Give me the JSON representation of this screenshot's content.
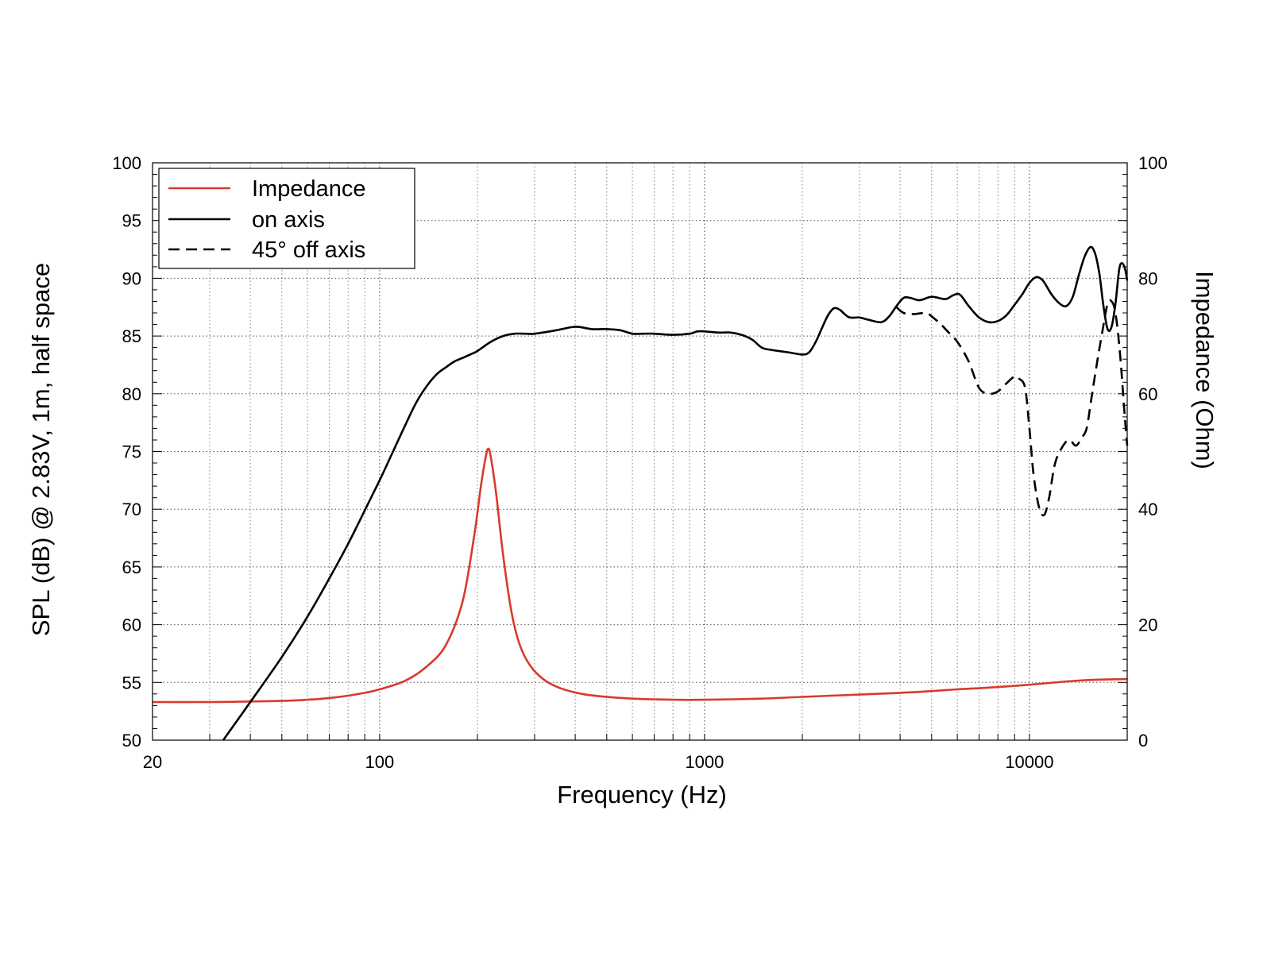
{
  "chart_data": {
    "type": "line",
    "xlabel": "Frequency (Hz)",
    "ylabel": "SPL (dB) @ 2.83V, 1m, half space",
    "y2label": "Impedance (Ohm)",
    "x_scale": "log",
    "xlim": [
      20,
      20000
    ],
    "ylim": [
      50,
      100
    ],
    "y2lim": [
      0,
      100
    ],
    "x_ticks": [
      20,
      100,
      1000,
      10000
    ],
    "y_ticks": [
      50,
      55,
      60,
      65,
      70,
      75,
      80,
      85,
      90,
      95,
      100
    ],
    "y2_ticks": [
      0,
      20,
      40,
      60,
      80,
      100
    ],
    "grid": true,
    "legend_position": "top-left",
    "series": [
      {
        "name": "Impedance",
        "axis": "right",
        "color": "#d93a2b",
        "dash": "solid",
        "points": [
          [
            20,
            6.6
          ],
          [
            30,
            6.6
          ],
          [
            40,
            6.7
          ],
          [
            50,
            6.8
          ],
          [
            60,
            7.0
          ],
          [
            70,
            7.3
          ],
          [
            80,
            7.7
          ],
          [
            90,
            8.2
          ],
          [
            100,
            8.8
          ],
          [
            120,
            10.3
          ],
          [
            140,
            12.8
          ],
          [
            160,
            16.5
          ],
          [
            180,
            24.0
          ],
          [
            195,
            35.0
          ],
          [
            205,
            44.0
          ],
          [
            212,
            49.0
          ],
          [
            216,
            50.5
          ],
          [
            220,
            49.0
          ],
          [
            228,
            43.0
          ],
          [
            240,
            32.0
          ],
          [
            255,
            22.0
          ],
          [
            270,
            16.5
          ],
          [
            290,
            13.0
          ],
          [
            320,
            10.5
          ],
          [
            360,
            9.0
          ],
          [
            420,
            8.0
          ],
          [
            500,
            7.5
          ],
          [
            600,
            7.2
          ],
          [
            800,
            7.0
          ],
          [
            1000,
            7.0
          ],
          [
            1500,
            7.2
          ],
          [
            2000,
            7.5
          ],
          [
            3000,
            7.9
          ],
          [
            4000,
            8.2
          ],
          [
            5000,
            8.5
          ],
          [
            6000,
            8.8
          ],
          [
            7000,
            9.0
          ],
          [
            8000,
            9.2
          ],
          [
            10000,
            9.6
          ],
          [
            12000,
            10.0
          ],
          [
            15000,
            10.4
          ],
          [
            20000,
            10.6
          ]
        ]
      },
      {
        "name": "on axis",
        "axis": "left",
        "color": "#000000",
        "dash": "solid",
        "points": [
          [
            33,
            50.0
          ],
          [
            40,
            53.3
          ],
          [
            50,
            57.2
          ],
          [
            60,
            60.7
          ],
          [
            70,
            64.0
          ],
          [
            80,
            67.0
          ],
          [
            90,
            69.9
          ],
          [
            100,
            72.5
          ],
          [
            110,
            75.0
          ],
          [
            120,
            77.3
          ],
          [
            130,
            79.3
          ],
          [
            140,
            80.7
          ],
          [
            150,
            81.7
          ],
          [
            160,
            82.3
          ],
          [
            170,
            82.8
          ],
          [
            180,
            83.1
          ],
          [
            190,
            83.4
          ],
          [
            200,
            83.7
          ],
          [
            220,
            84.5
          ],
          [
            240,
            85.0
          ],
          [
            260,
            85.2
          ],
          [
            280,
            85.2
          ],
          [
            300,
            85.2
          ],
          [
            350,
            85.5
          ],
          [
            400,
            85.8
          ],
          [
            450,
            85.6
          ],
          [
            500,
            85.6
          ],
          [
            550,
            85.5
          ],
          [
            600,
            85.2
          ],
          [
            650,
            85.2
          ],
          [
            700,
            85.2
          ],
          [
            800,
            85.1
          ],
          [
            900,
            85.2
          ],
          [
            950,
            85.4
          ],
          [
            1000,
            85.4
          ],
          [
            1100,
            85.3
          ],
          [
            1200,
            85.3
          ],
          [
            1300,
            85.1
          ],
          [
            1400,
            84.7
          ],
          [
            1500,
            84.0
          ],
          [
            1600,
            83.8
          ],
          [
            1800,
            83.6
          ],
          [
            2000,
            83.4
          ],
          [
            2100,
            83.6
          ],
          [
            2200,
            84.5
          ],
          [
            2300,
            85.7
          ],
          [
            2400,
            86.8
          ],
          [
            2500,
            87.4
          ],
          [
            2600,
            87.3
          ],
          [
            2700,
            86.9
          ],
          [
            2800,
            86.6
          ],
          [
            3000,
            86.6
          ],
          [
            3200,
            86.4
          ],
          [
            3500,
            86.2
          ],
          [
            3700,
            86.7
          ],
          [
            3900,
            87.6
          ],
          [
            4100,
            88.3
          ],
          [
            4300,
            88.3
          ],
          [
            4600,
            88.1
          ],
          [
            5000,
            88.4
          ],
          [
            5500,
            88.2
          ],
          [
            5800,
            88.5
          ],
          [
            6100,
            88.6
          ],
          [
            6500,
            87.6
          ],
          [
            7000,
            86.6
          ],
          [
            7500,
            86.2
          ],
          [
            8000,
            86.3
          ],
          [
            8500,
            86.8
          ],
          [
            9000,
            87.7
          ],
          [
            9500,
            88.6
          ],
          [
            10000,
            89.6
          ],
          [
            10500,
            90.1
          ],
          [
            11000,
            89.8
          ],
          [
            11700,
            88.6
          ],
          [
            12400,
            87.8
          ],
          [
            13000,
            87.6
          ],
          [
            13600,
            88.4
          ],
          [
            14200,
            90.3
          ],
          [
            14800,
            91.9
          ],
          [
            15400,
            92.7
          ],
          [
            15900,
            92.2
          ],
          [
            16400,
            90.5
          ],
          [
            16900,
            87.6
          ],
          [
            17400,
            85.6
          ],
          [
            17900,
            85.8
          ],
          [
            18400,
            87.8
          ],
          [
            18900,
            90.8
          ],
          [
            19300,
            91.3
          ],
          [
            19700,
            90.8
          ],
          [
            20000,
            89.8
          ]
        ]
      },
      {
        "name": "45° off axis",
        "axis": "left",
        "color": "#000000",
        "dash": "dashed",
        "points": [
          [
            3900,
            87.5
          ],
          [
            4100,
            87.0
          ],
          [
            4400,
            86.9
          ],
          [
            4800,
            87.0
          ],
          [
            5000,
            86.7
          ],
          [
            5300,
            86.1
          ],
          [
            5600,
            85.4
          ],
          [
            6000,
            84.5
          ],
          [
            6500,
            82.8
          ],
          [
            7000,
            80.5
          ],
          [
            7500,
            80.0
          ],
          [
            8000,
            80.2
          ],
          [
            8500,
            80.9
          ],
          [
            9000,
            81.5
          ],
          [
            9300,
            81.3
          ],
          [
            9700,
            80.5
          ],
          [
            10000,
            77.0
          ],
          [
            10300,
            73.0
          ],
          [
            10700,
            70.2
          ],
          [
            11100,
            69.5
          ],
          [
            11500,
            71.0
          ],
          [
            12000,
            74.0
          ],
          [
            12700,
            75.5
          ],
          [
            13300,
            76.0
          ],
          [
            13900,
            75.5
          ],
          [
            14500,
            76.2
          ],
          [
            15000,
            77.0
          ],
          [
            15500,
            79.5
          ],
          [
            16000,
            82.0
          ],
          [
            16800,
            85.5
          ],
          [
            17400,
            87.8
          ],
          [
            17900,
            88.0
          ],
          [
            18400,
            87.0
          ],
          [
            19000,
            83.5
          ],
          [
            19600,
            78.5
          ],
          [
            20000,
            75.5
          ]
        ]
      }
    ]
  }
}
